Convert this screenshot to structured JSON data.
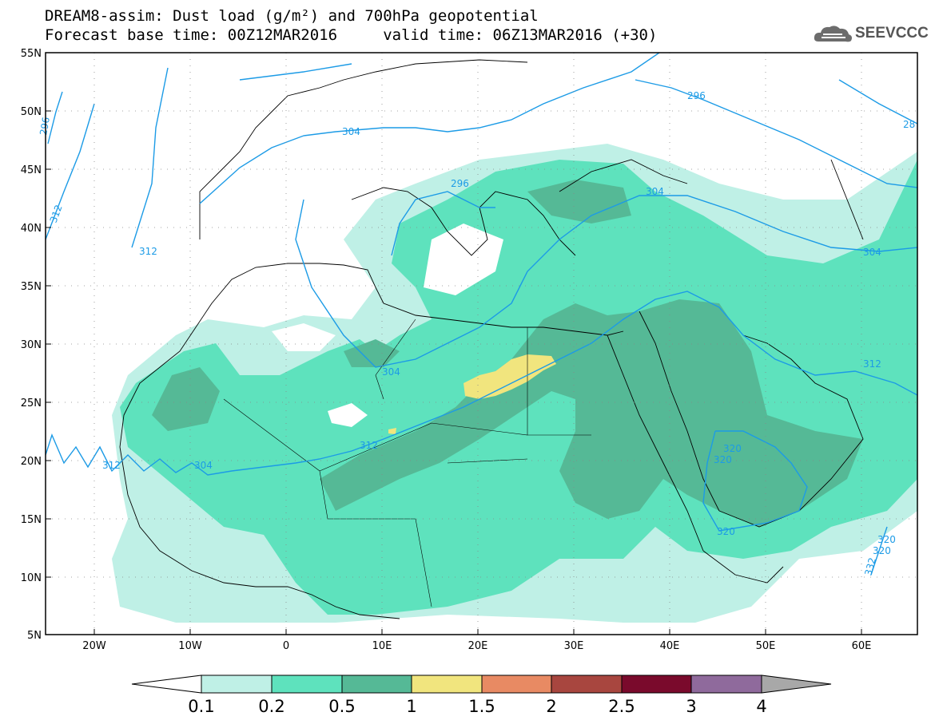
{
  "title_line1": "DREAM8-assim: Dust load (g/m²) and 700hPa geopotential",
  "title_line2": "Forecast base time: 00Z12MAR2016     valid time: 06Z13MAR2016 (+30)",
  "logo_text": "SEEVCCC",
  "logo_icon": "cloud-icon",
  "map": {
    "lon_labels": [
      "20W",
      "10W",
      "0",
      "10E",
      "20E",
      "30E",
      "40E",
      "50E",
      "60E"
    ],
    "lat_labels": [
      "55N",
      "50N",
      "45N",
      "40N",
      "35N",
      "30N",
      "25N",
      "20N",
      "15N",
      "10N",
      "5N"
    ],
    "contour_labels": [
      "296",
      "304",
      "312",
      "296",
      "304",
      "304",
      "296",
      "28",
      "304",
      "312",
      "304",
      "312",
      "312",
      "312",
      "320",
      "320",
      "320",
      "320",
      "320",
      "332"
    ]
  },
  "colorbar": {
    "labels": [
      "0.1",
      "0.2",
      "0.5",
      "1",
      "1.5",
      "2",
      "2.5",
      "3",
      "4"
    ],
    "colors": [
      "#ffffff",
      "#bff0e6",
      "#5ee2bd",
      "#55b996",
      "#f1e57e",
      "#e88a63",
      "#a8463f",
      "#7a0a2c",
      "#8f6a9c",
      "#a8a8a8"
    ]
  }
}
